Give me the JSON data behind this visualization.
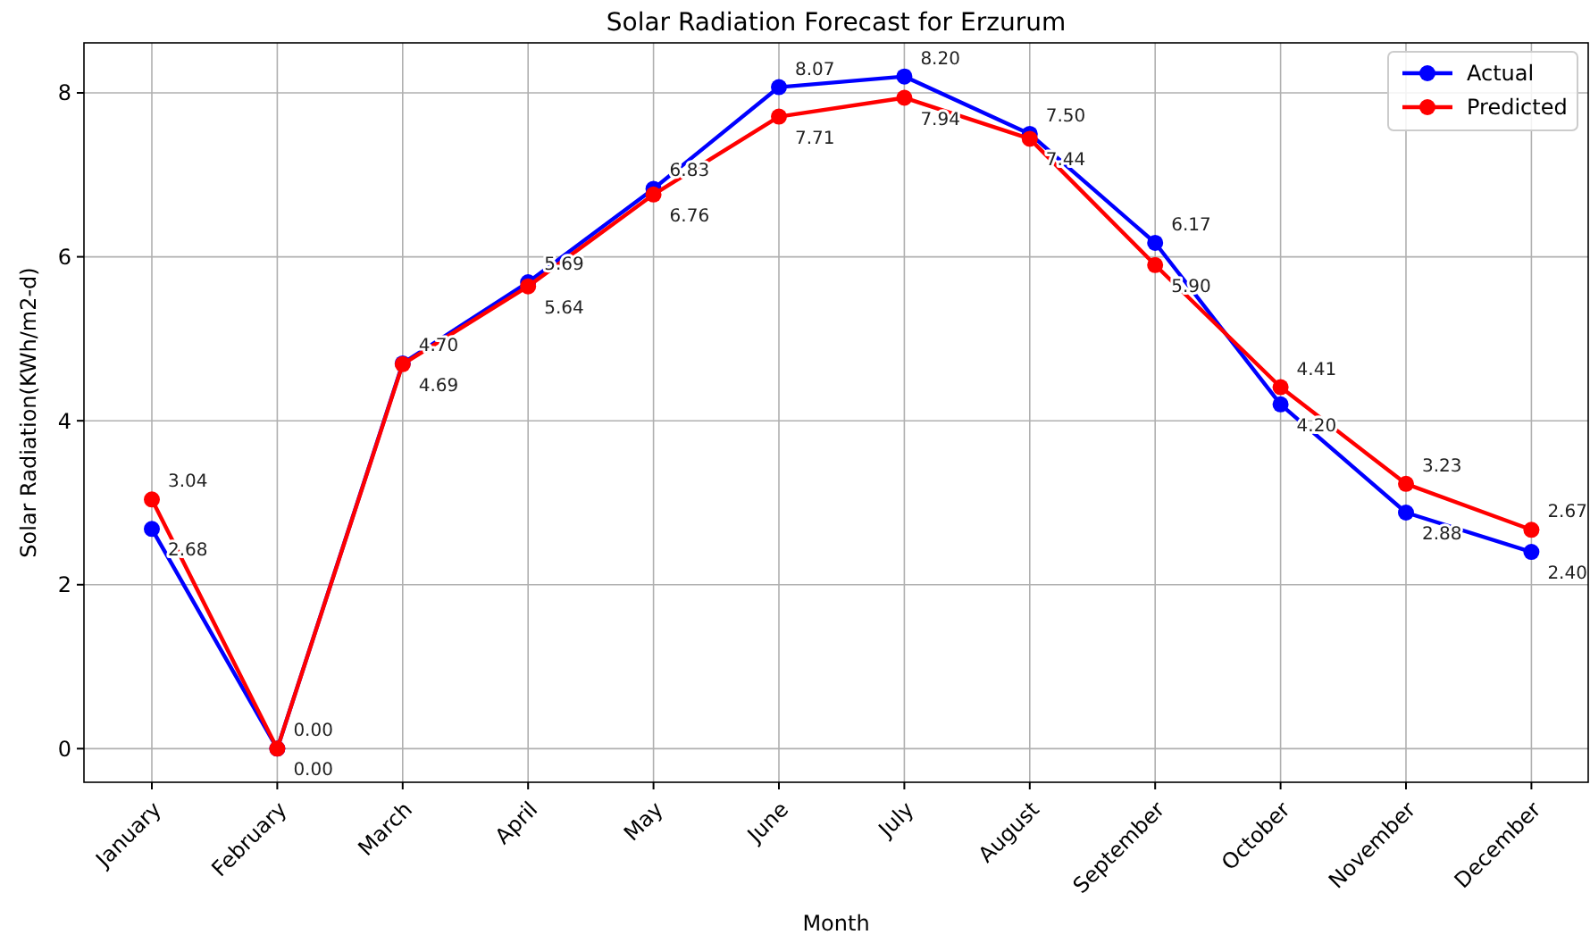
{
  "chart_data": {
    "type": "line",
    "title": "Solar Radiation Forecast for Erzurum",
    "xlabel": "Month",
    "ylabel": "Solar Radiation(KWh/m2-d)",
    "categories": [
      "January",
      "February",
      "March",
      "April",
      "May",
      "June",
      "July",
      "August",
      "September",
      "October",
      "November",
      "December"
    ],
    "series": [
      {
        "name": "Actual",
        "color": "#0000ff",
        "values": [
          2.68,
          0.0,
          4.7,
          5.69,
          6.83,
          8.07,
          8.2,
          7.5,
          6.17,
          4.2,
          2.88,
          2.4
        ],
        "value_labels": [
          "2.68",
          "0.00",
          "4.70",
          "5.69",
          "6.83",
          "8.07",
          "8.20",
          "7.50",
          "6.17",
          "4.20",
          "2.88",
          "2.40"
        ]
      },
      {
        "name": "Predicted",
        "color": "#ff0000",
        "values": [
          3.04,
          0.0,
          4.69,
          5.64,
          6.76,
          7.71,
          7.94,
          7.44,
          5.9,
          4.41,
          3.23,
          2.67
        ],
        "value_labels": [
          "3.04",
          "0.00",
          "4.69",
          "5.64",
          "6.76",
          "7.71",
          "7.94",
          "7.44",
          "5.90",
          "4.41",
          "3.23",
          "2.67"
        ]
      }
    ],
    "ylim": [
      -0.41,
      8.61
    ],
    "yticks": [
      0,
      2,
      4,
      6,
      8
    ],
    "grid": true,
    "legend": "top right",
    "marker": "circle",
    "line_style": "solid"
  }
}
